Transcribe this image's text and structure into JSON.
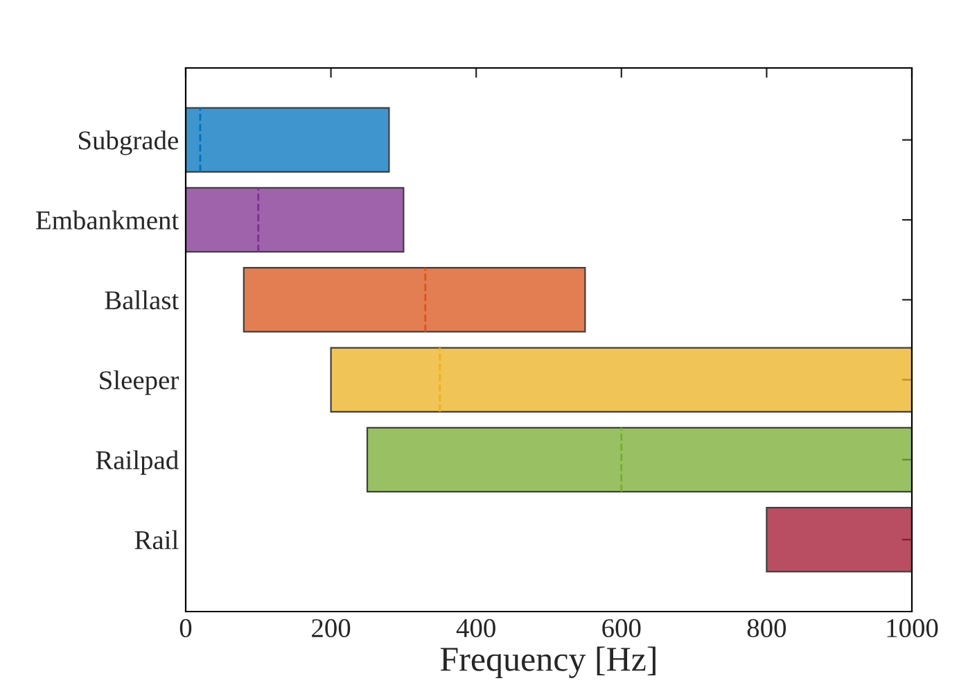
{
  "chart_data": {
    "type": "bar",
    "orientation": "horizontal",
    "xlabel": "Frequency [Hz]",
    "categories": [
      "Subgrade",
      "Embankment",
      "Ballast",
      "Sleeper",
      "Railpad",
      "Rail"
    ],
    "xlim": [
      0,
      1000
    ],
    "xticks": [
      0,
      200,
      400,
      600,
      800,
      1000
    ],
    "grid": false,
    "base": [
      0,
      0,
      80,
      200,
      250,
      800
    ],
    "values": [
      280,
      300,
      470,
      800,
      750,
      200
    ],
    "colors": [
      "#0072bd",
      "#7e2f8e",
      "#d95319",
      "#edb120",
      "#77ac30",
      "#a2142f"
    ],
    "ref_lines": [
      {
        "axis": "x",
        "value": 20,
        "color": "#0072bd",
        "line_style": "dashed"
      },
      {
        "axis": "x",
        "value": 100,
        "color": "#7e2f8e",
        "line_style": "dashed"
      },
      {
        "axis": "x",
        "value": 330,
        "color": "#d95319",
        "line_style": "dashed"
      },
      {
        "axis": "x",
        "value": 350,
        "color": "#edb120",
        "line_style": "dashed"
      },
      {
        "axis": "x",
        "value": 600,
        "color": "#77ac30",
        "line_style": "dashed"
      }
    ]
  }
}
